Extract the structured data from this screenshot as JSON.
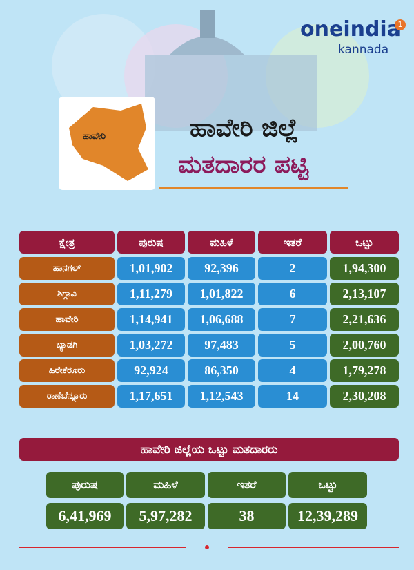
{
  "logo": {
    "brand": "oneindia",
    "sub": "kannada",
    "badge": "1"
  },
  "header": {
    "map_label": "ಹಾವೇರಿ",
    "title": "ಹಾವೇರಿ ಜಿಲ್ಲೆ",
    "subtitle": "ಮತದಾರರ ಪಟ್ಟಿ"
  },
  "table": {
    "columns": [
      "ಕ್ಷೇತ್ರ",
      "ಪುರುಷ",
      "ಮಹಿಳೆ",
      "ಇತರೆ",
      "ಒಟ್ಟು"
    ],
    "rows": [
      [
        "ಹಾನಗಲ್",
        "1,01,902",
        "92,396",
        "2",
        "1,94,300"
      ],
      [
        "ಶಿಗ್ಗಾವಿ",
        "1,11,279",
        "1,01,822",
        "6",
        "2,13,107"
      ],
      [
        "ಹಾವೇರಿ",
        "1,14,941",
        "1,06,688",
        "7",
        "2,21,636"
      ],
      [
        "ಬ್ಯಾಡಗಿ",
        "1,03,272",
        "97,483",
        "5",
        "2,00,760"
      ],
      [
        "ಹಿರೇಕೆರೂರು",
        "92,924",
        "86,350",
        "4",
        "1,79,278"
      ],
      [
        "ರಾಣೆಬೆನ್ನೂರು",
        "1,17,651",
        "1,12,543",
        "14",
        "2,30,208"
      ]
    ]
  },
  "summary": {
    "title": "ಹಾವೇರಿ ಜಿಲ್ಲೆಯ ಒಟ್ಟು ಮತದಾರರು",
    "columns": [
      "ಪುರುಷ",
      "ಮಹಿಳೆ",
      "ಇತರೆ",
      "ಒಟ್ಟು"
    ],
    "values": [
      "6,41,969",
      "5,97,282",
      "38",
      "12,39,289"
    ]
  }
}
